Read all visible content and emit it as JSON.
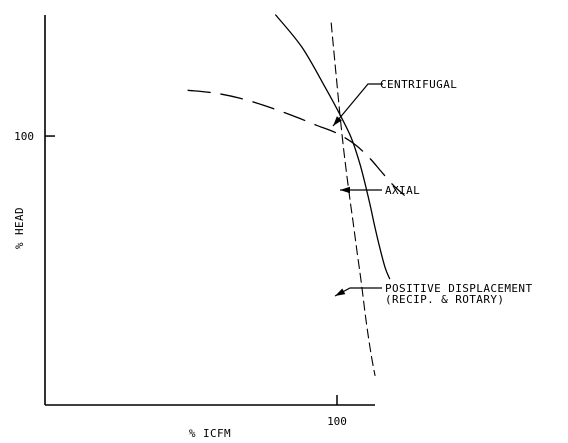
{
  "chart_data": {
    "type": "line",
    "title": "",
    "xlabel": "% ICFM",
    "ylabel": "% HEAD",
    "x_ticks": [
      {
        "value": 100,
        "label": "100"
      }
    ],
    "y_ticks": [
      {
        "value": 100,
        "label": "100"
      }
    ],
    "xlim": [
      0,
      125
    ],
    "ylim": [
      0,
      145
    ],
    "grid": false,
    "series": [
      {
        "name": "CENTRIFUGAL",
        "style": "dashed-long",
        "annotation": [
          "CENTRIFUGAL"
        ],
        "x": [
          49,
          58,
          67,
          76,
          85,
          93,
          100,
          106,
          111,
          115,
          119,
          123
        ],
        "y": [
          117,
          116,
          114,
          111,
          107.5,
          104,
          101,
          97,
          92,
          87,
          82,
          78
        ]
      },
      {
        "name": "AXIAL",
        "style": "solid",
        "annotation": [
          "AXIAL"
        ],
        "x": [
          79,
          88,
          96,
          101,
          105,
          108,
          111,
          113,
          115,
          116.5,
          118
        ],
        "y": [
          145,
          133,
          118,
          108,
          99,
          89,
          76,
          66,
          57,
          51,
          47
        ]
      },
      {
        "name": "POSITIVE DISPLACEMENT (RECIP. & ROTARY)",
        "style": "dashed-short",
        "annotation": [
          "POSITIVE DISPLACEMENT",
          "(RECIP. & ROTARY)"
        ],
        "x": [
          98,
          99.5,
          101,
          102.5,
          104,
          105.5,
          107,
          108.5,
          110,
          111.5,
          113
        ],
        "y": [
          142,
          125,
          108,
          93,
          80,
          68,
          56,
          44,
          31,
          20,
          11
        ]
      }
    ]
  }
}
